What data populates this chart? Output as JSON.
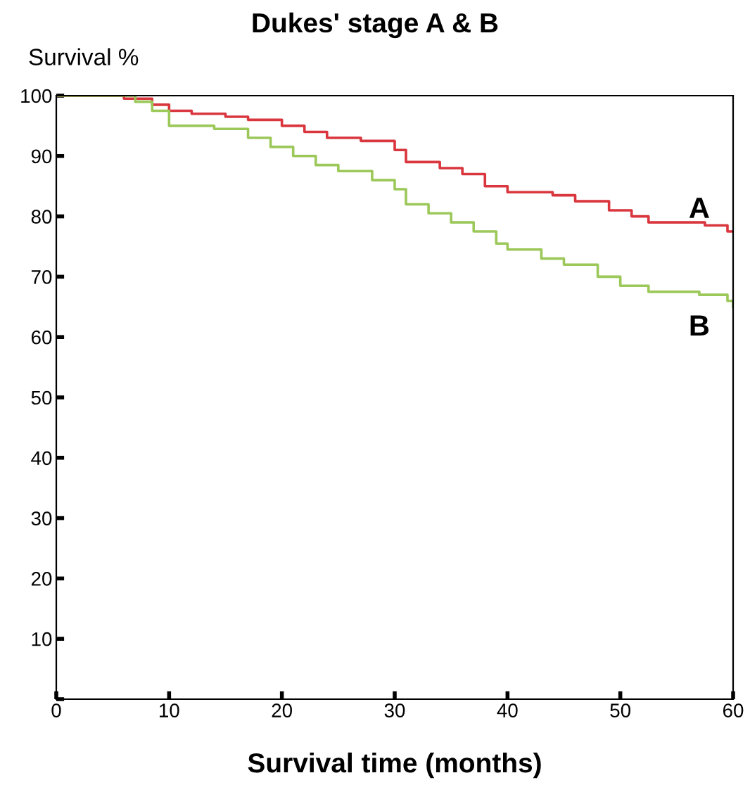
{
  "chart_data": {
    "type": "step",
    "title": "Dukes' stage A & B",
    "ylabel": "Survival %",
    "xlabel": "Survival time (months)",
    "series": [
      {
        "name": "A",
        "color": "#d9363e",
        "x": [
          0,
          6,
          8.5,
          10,
          12,
          15,
          17,
          20,
          22,
          24,
          27,
          30,
          31,
          34,
          36,
          38,
          40,
          44,
          46,
          49,
          51,
          52.5,
          57.5,
          59.5,
          60
        ],
        "values": [
          100,
          99.5,
          98.5,
          97.5,
          97,
          96.5,
          96,
          95,
          94,
          93,
          92.5,
          91,
          89,
          88,
          87,
          85,
          84,
          83.5,
          82.5,
          81,
          80,
          79,
          78.5,
          77.5,
          77.5
        ]
      },
      {
        "name": "B",
        "color": "#9cc85a",
        "x": [
          0,
          6,
          7,
          8.5,
          10,
          14,
          17,
          19,
          21,
          23,
          25,
          28,
          30,
          31,
          33,
          35,
          37,
          39,
          40,
          43,
          45,
          48,
          50,
          52.5,
          57,
          59.5,
          60
        ],
        "values": [
          100,
          100,
          99,
          97.5,
          95,
          94.5,
          93,
          91.5,
          90,
          88.5,
          87.5,
          86,
          84.5,
          82,
          80.5,
          79,
          77.5,
          75.5,
          74.5,
          73,
          72,
          70,
          68.5,
          67.5,
          67,
          66,
          65
        ]
      }
    ],
    "xlim": [
      0,
      60
    ],
    "ylim": [
      0,
      100
    ],
    "xticks": [
      0,
      10,
      20,
      30,
      40,
      50,
      60
    ],
    "yticks": [
      {
        "value": 0,
        "label": null
      },
      10,
      20,
      30,
      40,
      50,
      60,
      70,
      80,
      90,
      100
    ],
    "grid": false,
    "legend": false
  }
}
